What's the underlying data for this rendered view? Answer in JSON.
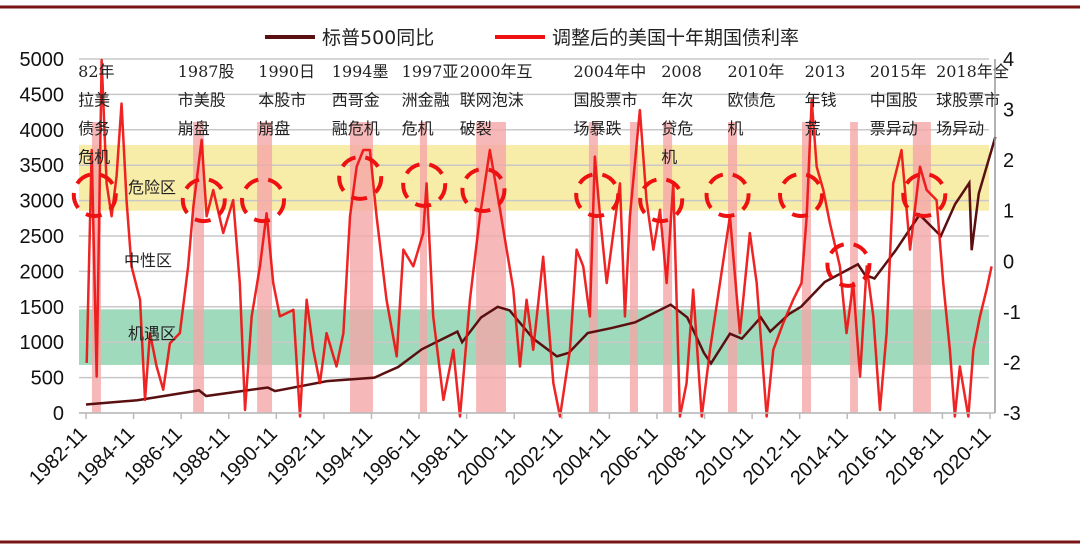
{
  "colors": {
    "sp500": "#5a1010",
    "yield": "#ee1111",
    "danger_zone": "#f7eaa0",
    "opportunity_zone": "#8fd3b0",
    "event_bar": "#f4a6a6",
    "rule": "#7a1515",
    "circle": "#ee1111"
  },
  "chart_data": {
    "type": "line",
    "title": "",
    "legend": {
      "placement": "top",
      "entries": [
        "标普500同比",
        "调整后的美国十年期国债利率"
      ]
    },
    "x_ticks": [
      "1982-11",
      "1984-11",
      "1986-11",
      "1988-11",
      "1990-11",
      "1992-11",
      "1994-11",
      "1996-11",
      "1998-11",
      "2000-11",
      "2002-11",
      "2004-11",
      "2006-11",
      "2008-11",
      "2010-11",
      "2012-11",
      "2014-11",
      "2016-11",
      "2018-11",
      "2020-11"
    ],
    "y_left": {
      "range": [
        0,
        5000
      ],
      "ticks": [
        "0",
        "500",
        "1000",
        "1500",
        "2000",
        "2500",
        "3000",
        "3500",
        "4000",
        "4500",
        "5000"
      ]
    },
    "y_right": {
      "range": [
        -3,
        4
      ],
      "ticks": [
        "-3",
        "-2",
        "-1",
        "0",
        "1",
        "2",
        "3",
        "4"
      ]
    },
    "grid": true,
    "series": [
      {
        "name": "标普500同比",
        "axis": "left",
        "points": [
          [
            1982.83,
            120
          ],
          [
            1985.0,
            180
          ],
          [
            1987.6,
            320
          ],
          [
            1987.9,
            240
          ],
          [
            1990.5,
            360
          ],
          [
            1990.8,
            310
          ],
          [
            1993.0,
            450
          ],
          [
            1995.0,
            500
          ],
          [
            1996.0,
            650
          ],
          [
            1997.0,
            900
          ],
          [
            1998.5,
            1150
          ],
          [
            1998.7,
            1000
          ],
          [
            1999.5,
            1350
          ],
          [
            2000.2,
            1500
          ],
          [
            2000.7,
            1450
          ],
          [
            2001.7,
            1050
          ],
          [
            2002.7,
            800
          ],
          [
            2003.2,
            850
          ],
          [
            2004.0,
            1130
          ],
          [
            2005.0,
            1200
          ],
          [
            2006.0,
            1280
          ],
          [
            2007.5,
            1530
          ],
          [
            2008.2,
            1350
          ],
          [
            2008.9,
            850
          ],
          [
            2009.2,
            700
          ],
          [
            2010.0,
            1120
          ],
          [
            2010.5,
            1050
          ],
          [
            2011.3,
            1350
          ],
          [
            2011.7,
            1150
          ],
          [
            2012.5,
            1400
          ],
          [
            2013.0,
            1500
          ],
          [
            2014.0,
            1850
          ],
          [
            2015.4,
            2100
          ],
          [
            2015.7,
            1950
          ],
          [
            2016.1,
            1900
          ],
          [
            2017.0,
            2300
          ],
          [
            2018.0,
            2800
          ],
          [
            2018.9,
            2500
          ],
          [
            2019.5,
            2950
          ],
          [
            2020.1,
            3250
          ],
          [
            2020.2,
            2300
          ],
          [
            2020.5,
            3100
          ],
          [
            2021.2,
            3900
          ]
        ]
      },
      {
        "name": "调整后的美国十年期国债利率",
        "axis": "right",
        "points": [
          [
            1982.86,
            -2.01
          ],
          [
            1983.07,
            2.2
          ],
          [
            1983.28,
            -2.28
          ],
          [
            1983.49,
            3.98
          ],
          [
            1983.7,
            1.54
          ],
          [
            1983.91,
            0.89
          ],
          [
            1984.12,
            1.68
          ],
          [
            1984.33,
            3.12
          ],
          [
            1984.54,
            1.21
          ],
          [
            1984.75,
            -0.1
          ],
          [
            1985.11,
            -0.76
          ],
          [
            1985.32,
            -2.74
          ],
          [
            1985.53,
            -1.42
          ],
          [
            1985.81,
            -2.08
          ],
          [
            1986.09,
            -2.54
          ],
          [
            1986.37,
            -1.62
          ],
          [
            1986.79,
            -1.42
          ],
          [
            1987.14,
            -0.1
          ],
          [
            1987.36,
            1.08
          ],
          [
            1987.71,
            2.4
          ],
          [
            1987.92,
            0.89
          ],
          [
            1988.2,
            1.41
          ],
          [
            1988.62,
            0.56
          ],
          [
            1989.04,
            1.21
          ],
          [
            1989.32,
            -0.43
          ],
          [
            1989.54,
            -2.94
          ],
          [
            1989.82,
            -1.09
          ],
          [
            1990.17,
            -0.1
          ],
          [
            1990.45,
            0.95
          ],
          [
            1990.73,
            -0.43
          ],
          [
            1991.01,
            -1.09
          ],
          [
            1991.58,
            -0.96
          ],
          [
            1991.86,
            -3.07
          ],
          [
            1992.14,
            -0.76
          ],
          [
            1992.42,
            -1.75
          ],
          [
            1992.7,
            -2.41
          ],
          [
            1992.98,
            -1.42
          ],
          [
            1993.4,
            -2.08
          ],
          [
            1993.69,
            -1.42
          ],
          [
            1993.97,
            0.89
          ],
          [
            1994.25,
            1.87
          ],
          [
            1994.53,
            2.2
          ],
          [
            1994.81,
            2.2
          ],
          [
            1995.09,
            0.89
          ],
          [
            1995.51,
            -0.76
          ],
          [
            1995.94,
            -1.88
          ],
          [
            1996.22,
            0.23
          ],
          [
            1996.64,
            -0.1
          ],
          [
            1997.06,
            0.56
          ],
          [
            1997.2,
            1.54
          ],
          [
            1997.48,
            -1.09
          ],
          [
            1997.91,
            -2.74
          ],
          [
            1998.33,
            -1.75
          ],
          [
            1998.61,
            -3.07
          ],
          [
            1999.03,
            -0.76
          ],
          [
            1999.45,
            0.89
          ],
          [
            1999.87,
            2.2
          ],
          [
            2000.3,
            1.02
          ],
          [
            2000.58,
            0.23
          ],
          [
            2000.86,
            -0.56
          ],
          [
            2001.14,
            -2.08
          ],
          [
            2001.42,
            -0.76
          ],
          [
            2001.7,
            -1.75
          ],
          [
            2002.12,
            0.09
          ],
          [
            2002.55,
            -2.41
          ],
          [
            2002.83,
            -3.07
          ],
          [
            2003.25,
            -1.75
          ],
          [
            2003.53,
            0.23
          ],
          [
            2003.81,
            -0.1
          ],
          [
            2004.09,
            -1.09
          ],
          [
            2004.3,
            2.07
          ],
          [
            2004.52,
            0.89
          ],
          [
            2004.8,
            -0.43
          ],
          [
            2005.08,
            0.56
          ],
          [
            2005.36,
            1.54
          ],
          [
            2005.57,
            -1.09
          ],
          [
            2005.78,
            0.89
          ],
          [
            2006.2,
            2.99
          ],
          [
            2006.48,
            1.21
          ],
          [
            2006.77,
            0.23
          ],
          [
            2007.05,
            1.02
          ],
          [
            2007.33,
            -0.43
          ],
          [
            2007.61,
            1.54
          ],
          [
            2007.89,
            -3.07
          ],
          [
            2008.17,
            -2.41
          ],
          [
            2008.45,
            -0.56
          ],
          [
            2008.81,
            -3.07
          ],
          [
            2009.16,
            -1.75
          ],
          [
            2009.58,
            -0.43
          ],
          [
            2010.0,
            0.89
          ],
          [
            2010.42,
            -1.42
          ],
          [
            2010.84,
            0.56
          ],
          [
            2011.13,
            -0.43
          ],
          [
            2011.55,
            -3.07
          ],
          [
            2011.83,
            -1.75
          ],
          [
            2012.25,
            -1.22
          ],
          [
            2012.67,
            -0.76
          ],
          [
            2013.02,
            -0.43
          ],
          [
            2013.24,
            0.89
          ],
          [
            2013.45,
            3.19
          ],
          [
            2013.66,
            1.87
          ],
          [
            2013.94,
            1.41
          ],
          [
            2014.22,
            0.75
          ],
          [
            2014.64,
            -0.1
          ],
          [
            2014.92,
            -1.42
          ],
          [
            2015.2,
            -0.43
          ],
          [
            2015.49,
            -2.28
          ],
          [
            2015.77,
            -0.1
          ],
          [
            2016.05,
            -1.09
          ],
          [
            2016.33,
            -2.94
          ],
          [
            2016.61,
            -1.42
          ],
          [
            2016.89,
            1.54
          ],
          [
            2017.24,
            2.2
          ],
          [
            2017.6,
            0.23
          ],
          [
            2018.02,
            1.87
          ],
          [
            2018.3,
            1.41
          ],
          [
            2018.72,
            1.21
          ],
          [
            2019.0,
            -0.43
          ],
          [
            2019.28,
            -1.75
          ],
          [
            2019.49,
            -3.07
          ],
          [
            2019.7,
            -2.08
          ],
          [
            2020.06,
            -3.07
          ],
          [
            2020.27,
            -1.75
          ],
          [
            2020.55,
            -1.09
          ],
          [
            2020.83,
            -0.56
          ],
          [
            2021.04,
            -0.1
          ]
        ]
      }
    ],
    "zones": [
      {
        "label": "危险区",
        "axis": "right",
        "range": [
          1.0,
          2.3
        ]
      },
      {
        "label": "中性区",
        "axis": "right",
        "range": [
          -1.0,
          1.0
        ]
      },
      {
        "label": "机遇区",
        "axis": "right",
        "range": [
          -2.05,
          -0.95
        ]
      }
    ],
    "event_bars": [
      [
        1983.08,
        1983.46
      ],
      [
        1987.35,
        1987.81
      ],
      [
        1990.05,
        1990.68
      ],
      [
        1993.97,
        1994.94
      ],
      [
        1996.92,
        1997.22
      ],
      [
        1999.29,
        2000.55
      ],
      [
        2004.05,
        2004.43
      ],
      [
        2005.78,
        2006.12
      ],
      [
        2007.18,
        2007.56
      ],
      [
        2009.92,
        2010.3
      ],
      [
        2013.04,
        2013.42
      ],
      [
        2015.07,
        2015.4
      ],
      [
        2017.72,
        2018.48
      ]
    ],
    "highlight_circles": [
      [
        1983.2,
        1.31
      ],
      [
        1987.8,
        1.21
      ],
      [
        1990.3,
        1.21
      ],
      [
        1994.4,
        1.65
      ],
      [
        1997.1,
        1.51
      ],
      [
        1999.6,
        1.41
      ],
      [
        2004.4,
        1.31
      ],
      [
        2007.1,
        1.21
      ],
      [
        2009.9,
        1.31
      ],
      [
        2013.0,
        1.31
      ],
      [
        2015.0,
        -0.07
      ],
      [
        2018.2,
        1.31
      ]
    ],
    "annotations": [
      {
        "year": 1982.5,
        "lines": [
          "82年",
          "拉美",
          "债务",
          "危机"
        ]
      },
      {
        "year": 1986.7,
        "lines": [
          "1987股",
          "市美股",
          "崩盘"
        ]
      },
      {
        "year": 1990.1,
        "lines": [
          "1990日",
          "本股市",
          "崩盘"
        ]
      },
      {
        "year": 1993.2,
        "lines": [
          "1994墨",
          "西哥金",
          "融危机"
        ]
      },
      {
        "year": 1996.15,
        "lines": [
          "1997亚",
          "洲金融",
          "危机"
        ]
      },
      {
        "year": 1998.6,
        "lines": [
          "2000年互",
          "联网泡沫",
          "破裂"
        ]
      },
      {
        "year": 2003.4,
        "lines": [
          "2004年中",
          "国股票市",
          "场暴跌"
        ]
      },
      {
        "year": 2007.1,
        "lines": [
          "2008",
          "年次",
          "贷危",
          "机"
        ]
      },
      {
        "year": 2009.9,
        "lines": [
          "2010年",
          "欧债危",
          "机"
        ]
      },
      {
        "year": 2013.15,
        "lines": [
          "2013",
          "年钱",
          "荒"
        ]
      },
      {
        "year": 2015.9,
        "lines": [
          "2015年",
          "中国股",
          "票异动"
        ]
      },
      {
        "year": 2018.7,
        "lines": [
          "2018年全",
          "球股票市",
          "场异动"
        ]
      }
    ]
  }
}
